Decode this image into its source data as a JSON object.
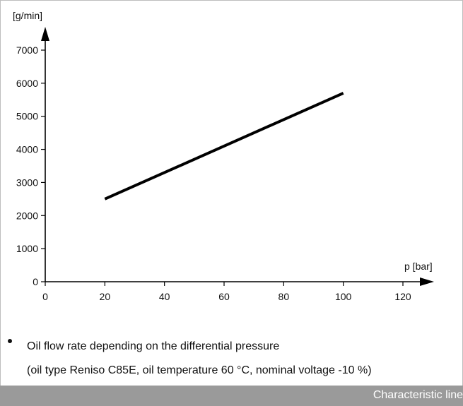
{
  "chart_data": {
    "type": "line",
    "ylabel": "[g/min]",
    "xlabel": "p [bar]",
    "xlim": [
      0,
      120
    ],
    "ylim": [
      0,
      7000
    ],
    "x_ticks": [
      0,
      20,
      40,
      60,
      80,
      100,
      120
    ],
    "y_ticks": [
      0,
      1000,
      2000,
      3000,
      4000,
      5000,
      6000,
      7000
    ],
    "grid": false,
    "series": [
      {
        "x": [
          20,
          100
        ],
        "y": [
          2500,
          5700
        ]
      }
    ]
  },
  "caption": {
    "line1": "Oil flow rate depending on the differential pressure",
    "line2": "(oil type Reniso C85E, oil temperature 60 °C, nominal voltage -10 %)"
  },
  "footer": {
    "label": "Characteristic line"
  },
  "colors": {
    "line": "#000000",
    "footer_bg": "#9a9a9a",
    "footer_text": "#ffffff"
  }
}
